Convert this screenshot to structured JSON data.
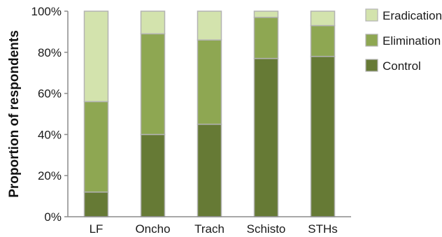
{
  "chart_data": {
    "type": "bar",
    "stacked": true,
    "categories": [
      "LF",
      "Oncho",
      "Trach",
      "Schisto",
      "STHs"
    ],
    "series": [
      {
        "name": "Control",
        "color": "#667a35",
        "values": [
          12,
          40,
          45,
          77,
          78
        ]
      },
      {
        "name": "Elimination",
        "color": "#8ea752",
        "values": [
          44,
          49,
          41,
          20,
          15
        ]
      },
      {
        "name": "Eradication",
        "color": "#d3e3ad",
        "values": [
          44,
          11,
          14,
          3,
          7
        ]
      }
    ],
    "legend_order": [
      "Eradication",
      "Elimination",
      "Control"
    ],
    "ylabel": "Proportion of respondents",
    "ylim": [
      0,
      100
    ],
    "yticks": [
      "0%",
      "20%",
      "40%",
      "60%",
      "80%",
      "100%"
    ],
    "ytick_values": [
      0,
      20,
      40,
      60,
      80,
      100
    ],
    "grid": false,
    "legend_position": "right-top"
  }
}
